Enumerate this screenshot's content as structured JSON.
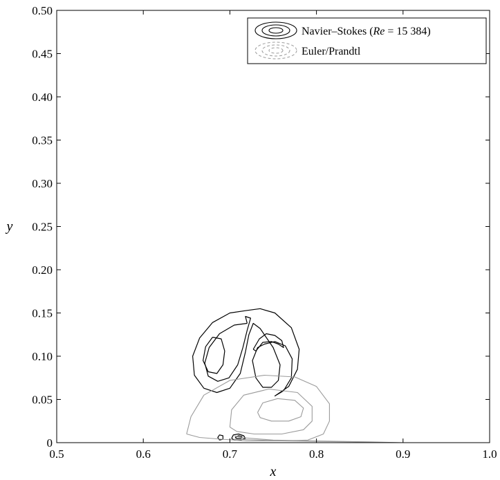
{
  "chart_data": {
    "type": "contour",
    "xlabel": "x",
    "ylabel": "y",
    "xlim": [
      0.5,
      1.0
    ],
    "ylim": [
      0,
      0.5
    ],
    "xticks": [
      "0.5",
      "0.6",
      "0.7",
      "0.8",
      "0.9",
      "1.0"
    ],
    "yticks": [
      "0",
      "0.05",
      "0.10",
      "0.15",
      "0.20",
      "0.25",
      "0.30",
      "0.35",
      "0.40",
      "0.45",
      "0.50"
    ],
    "grid": false,
    "legend": {
      "position": "top-right",
      "entries": [
        {
          "label_main": "Navier–Stokes (",
          "label_italic": "Re",
          "label_rest": " = 15 384)",
          "color": "#000000",
          "style": "solid"
        },
        {
          "label_main": "Euler/Prandtl",
          "color": "#9a9a9a",
          "style": "dashed"
        }
      ]
    },
    "series": [
      {
        "legend_index": 0,
        "color": "#000000",
        "contours": [
          [
            [
              0.72,
              0.153
            ],
            [
              0.7,
              0.15
            ],
            [
              0.68,
              0.139
            ],
            [
              0.665,
              0.121
            ],
            [
              0.657,
              0.1
            ],
            [
              0.659,
              0.078
            ],
            [
              0.67,
              0.063
            ],
            [
              0.685,
              0.058
            ],
            [
              0.7,
              0.063
            ],
            [
              0.712,
              0.08
            ],
            [
              0.718,
              0.105
            ],
            [
              0.722,
              0.125
            ],
            [
              0.727,
              0.138
            ],
            [
              0.735,
              0.132
            ],
            [
              0.75,
              0.11
            ],
            [
              0.758,
              0.09
            ],
            [
              0.756,
              0.072
            ],
            [
              0.748,
              0.064
            ],
            [
              0.738,
              0.064
            ],
            [
              0.73,
              0.075
            ],
            [
              0.726,
              0.095
            ],
            [
              0.732,
              0.11
            ],
            [
              0.74,
              0.114
            ],
            [
              0.752,
              0.117
            ],
            [
              0.764,
              0.112
            ],
            [
              0.772,
              0.097
            ],
            [
              0.771,
              0.075
            ],
            [
              0.762,
              0.06
            ],
            [
              0.752,
              0.054
            ],
            [
              0.768,
              0.065
            ],
            [
              0.778,
              0.085
            ],
            [
              0.78,
              0.108
            ],
            [
              0.771,
              0.133
            ],
            [
              0.752,
              0.15
            ],
            [
              0.735,
              0.155
            ],
            [
              0.72,
              0.153
            ]
          ],
          [
            [
              0.72,
              0.138
            ],
            [
              0.705,
              0.136
            ],
            [
              0.688,
              0.126
            ],
            [
              0.676,
              0.11
            ],
            [
              0.671,
              0.092
            ],
            [
              0.675,
              0.077
            ],
            [
              0.686,
              0.071
            ],
            [
              0.699,
              0.075
            ],
            [
              0.709,
              0.09
            ],
            [
              0.715,
              0.11
            ],
            [
              0.72,
              0.13
            ],
            [
              0.724,
              0.144
            ],
            [
              0.718,
              0.146
            ],
            [
              0.72,
              0.138
            ]
          ],
          [
            [
              0.68,
              0.122
            ],
            [
              0.672,
              0.111
            ],
            [
              0.669,
              0.095
            ],
            [
              0.675,
              0.082
            ],
            [
              0.685,
              0.08
            ],
            [
              0.692,
              0.09
            ],
            [
              0.694,
              0.106
            ],
            [
              0.69,
              0.12
            ],
            [
              0.68,
              0.122
            ]
          ],
          [
            [
              0.727,
              0.108
            ],
            [
              0.734,
              0.12
            ],
            [
              0.742,
              0.126
            ],
            [
              0.752,
              0.124
            ],
            [
              0.76,
              0.118
            ],
            [
              0.762,
              0.11
            ],
            [
              0.756,
              0.114
            ],
            [
              0.748,
              0.117
            ],
            [
              0.738,
              0.116
            ],
            [
              0.73,
              0.106
            ],
            [
              0.727,
              0.108
            ]
          ],
          [
            [
              0.688,
              0.003
            ],
            [
              0.686,
              0.006
            ],
            [
              0.688,
              0.009
            ],
            [
              0.692,
              0.008
            ],
            [
              0.692,
              0.004
            ],
            [
              0.688,
              0.003
            ]
          ],
          [
            [
              0.702,
              0.005
            ],
            [
              0.704,
              0.009
            ],
            [
              0.71,
              0.01
            ],
            [
              0.716,
              0.008
            ],
            [
              0.718,
              0.005
            ],
            [
              0.712,
              0.003
            ],
            [
              0.705,
              0.003
            ],
            [
              0.702,
              0.005
            ]
          ],
          [
            [
              0.706,
              0.006
            ],
            [
              0.71,
              0.008
            ],
            [
              0.714,
              0.007
            ],
            [
              0.713,
              0.005
            ],
            [
              0.708,
              0.005
            ],
            [
              0.706,
              0.006
            ]
          ]
        ]
      },
      {
        "legend_index": 1,
        "color": "#9a9a9a",
        "contours": [
          [
            [
              0.65,
              0.01
            ],
            [
              0.655,
              0.03
            ],
            [
              0.67,
              0.055
            ],
            [
              0.7,
              0.072
            ],
            [
              0.74,
              0.078
            ],
            [
              0.775,
              0.076
            ],
            [
              0.8,
              0.065
            ],
            [
              0.815,
              0.045
            ],
            [
              0.815,
              0.025
            ],
            [
              0.808,
              0.01
            ],
            [
              0.79,
              0.003
            ],
            [
              0.76,
              0.002
            ],
            [
              0.72,
              0.002
            ],
            [
              0.69,
              0.004
            ],
            [
              0.665,
              0.006
            ],
            [
              0.65,
              0.01
            ]
          ],
          [
            [
              0.7,
              0.018
            ],
            [
              0.702,
              0.038
            ],
            [
              0.716,
              0.055
            ],
            [
              0.745,
              0.062
            ],
            [
              0.778,
              0.058
            ],
            [
              0.795,
              0.042
            ],
            [
              0.795,
              0.025
            ],
            [
              0.785,
              0.015
            ],
            [
              0.76,
              0.01
            ],
            [
              0.728,
              0.01
            ],
            [
              0.708,
              0.013
            ],
            [
              0.7,
              0.018
            ]
          ],
          [
            [
              0.732,
              0.035
            ],
            [
              0.738,
              0.046
            ],
            [
              0.755,
              0.051
            ],
            [
              0.775,
              0.049
            ],
            [
              0.785,
              0.04
            ],
            [
              0.782,
              0.03
            ],
            [
              0.768,
              0.025
            ],
            [
              0.748,
              0.025
            ],
            [
              0.735,
              0.029
            ],
            [
              0.732,
              0.035
            ]
          ],
          [
            [
              0.705,
              0.008
            ],
            [
              0.712,
              0.006
            ],
            [
              0.75,
              0.003
            ],
            [
              0.8,
              0.002
            ],
            [
              0.86,
              0.001
            ],
            [
              0.9,
              0.0
            ]
          ],
          [
            [
              0.705,
              0.004
            ],
            [
              0.76,
              0.002
            ],
            [
              0.84,
              0.001
            ],
            [
              0.895,
              0.0
            ]
          ]
        ]
      }
    ]
  }
}
